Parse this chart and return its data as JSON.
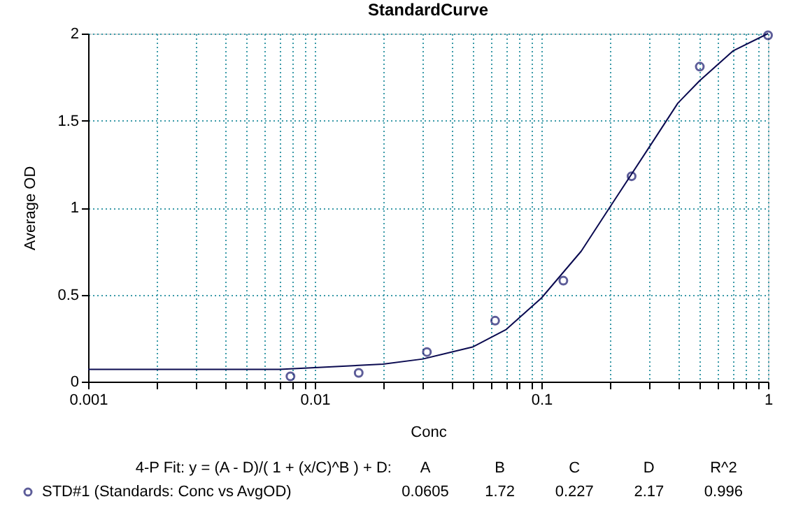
{
  "chart_data": {
    "type": "scatter",
    "title": "StandardCurve",
    "xlabel": "Conc",
    "ylabel": "Average OD",
    "log": "x",
    "grid": true,
    "legend": "bottom",
    "marker": "circle",
    "xlim": [
      0.001,
      1
    ],
    "ylim": [
      0,
      2
    ],
    "xticks": [
      0.001,
      {
        "value": 0.002,
        "label": null
      },
      {
        "value": 0.003,
        "label": null
      },
      {
        "value": 0.004,
        "label": null
      },
      {
        "value": 0.005,
        "label": null
      },
      {
        "value": 0.006,
        "label": null
      },
      {
        "value": 0.007,
        "label": null
      },
      {
        "value": 0.008,
        "label": null
      },
      {
        "value": 0.009,
        "label": null
      },
      0.01,
      {
        "value": 0.02,
        "label": null
      },
      {
        "value": 0.03,
        "label": null
      },
      {
        "value": 0.04,
        "label": null
      },
      {
        "value": 0.05,
        "label": null
      },
      {
        "value": 0.06,
        "label": null
      },
      {
        "value": 0.07,
        "label": null
      },
      {
        "value": 0.08,
        "label": null
      },
      {
        "value": 0.09,
        "label": null
      },
      0.1,
      {
        "value": 0.2,
        "label": null
      },
      {
        "value": 0.3,
        "label": null
      },
      {
        "value": 0.4,
        "label": null
      },
      {
        "value": 0.5,
        "label": null
      },
      {
        "value": 0.6,
        "label": null
      },
      {
        "value": 0.7,
        "label": null
      },
      {
        "value": 0.8,
        "label": null
      },
      {
        "value": 0.9,
        "label": null
      },
      1
    ],
    "yticks": [
      0,
      0.5,
      1,
      1.5,
      2
    ],
    "series": [
      {
        "name": "STD#1 (Standards: Conc vs AvgOD)",
        "color": "#1a1a6e",
        "x": [
          0.0078125,
          0.015625,
          0.03125,
          0.0625,
          0.125,
          0.25,
          0.5,
          1
        ],
        "values": [
          0.03,
          0.05,
          0.17,
          0.35,
          0.58,
          1.18,
          1.81,
          1.99
        ]
      },
      {
        "type": "line",
        "color": "#0a0a50",
        "marker": "none",
        "line_style": "solid",
        "x": [
          0.001,
          0.007,
          0.01,
          0.02,
          0.03,
          0.05,
          0.07,
          0.1,
          0.15,
          0.2,
          0.3,
          0.4,
          0.5,
          0.7,
          1
        ],
        "values": [
          0.07,
          0.07,
          0.08,
          0.1,
          0.13,
          0.2,
          0.3,
          0.48,
          0.75,
          1.0,
          1.35,
          1.6,
          1.73,
          1.9,
          2.0
        ]
      }
    ],
    "annotations": [
      "4-P Fit: y = (A - D)/( 1 + (x/C)^B ) + D:",
      "A",
      "B",
      "C",
      "D",
      "R^2",
      "0.0605",
      "1.72",
      "0.227",
      "2.17",
      "0.996"
    ]
  }
}
